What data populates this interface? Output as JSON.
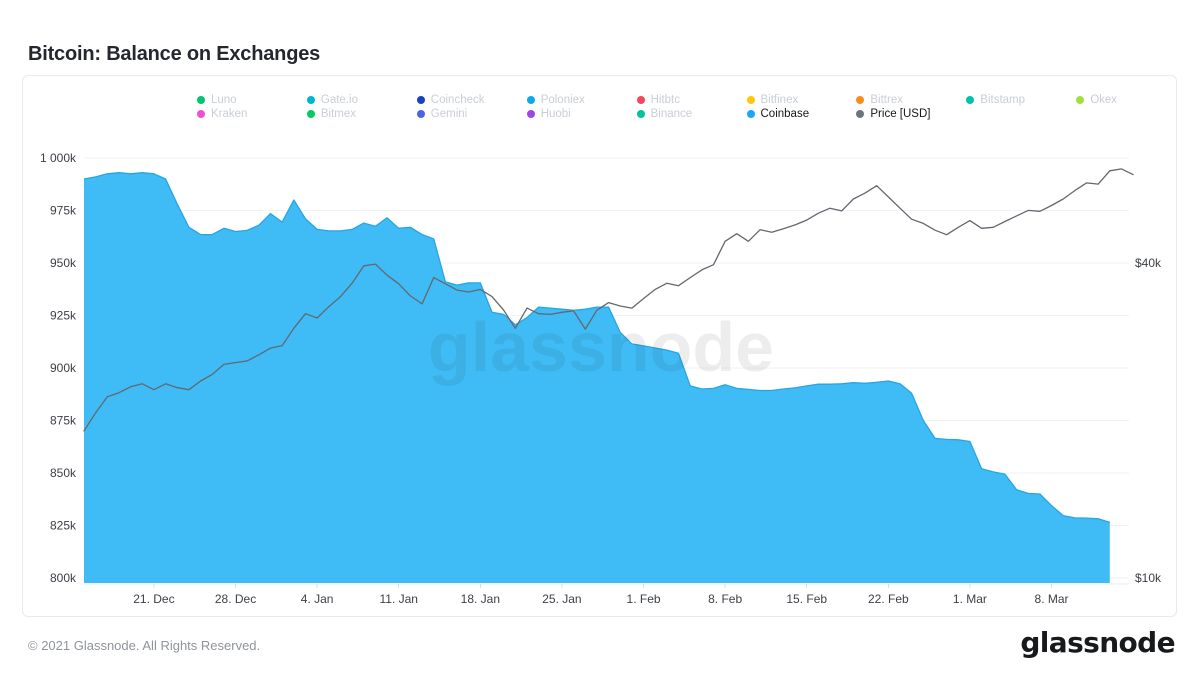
{
  "page": {
    "title": "Bitcoin: Balance on Exchanges",
    "watermark": "glassnode",
    "footer_copyright": "© 2021 Glassnode. All Rights Reserved.",
    "footer_logo": "glassnode"
  },
  "legend": {
    "rows": [
      [
        {
          "label": "Luno",
          "color": "#00c66f",
          "active": false
        },
        {
          "label": "Gate.io",
          "color": "#00b4d8",
          "active": false
        },
        {
          "label": "Coincheck",
          "color": "#1641c3",
          "active": false
        },
        {
          "label": "Poloniex",
          "color": "#0fa7f0",
          "active": false
        },
        {
          "label": "Hitbtc",
          "color": "#f5485d",
          "active": false
        },
        {
          "label": "Bitfinex",
          "color": "#ffc60b",
          "active": false
        },
        {
          "label": "Bittrex",
          "color": "#fc8b1f",
          "active": false
        },
        {
          "label": "Bitstamp",
          "color": "#00c2a4",
          "active": false
        },
        {
          "label": "Okex",
          "color": "#a0e03c",
          "active": false
        }
      ],
      [
        {
          "label": "Kraken",
          "color": "#ef4fd8",
          "active": false
        },
        {
          "label": "Bitmex",
          "color": "#00cb61",
          "active": false
        },
        {
          "label": "Gemini",
          "color": "#4f61e5",
          "active": false
        },
        {
          "label": "Huobi",
          "color": "#9a49e6",
          "active": false
        },
        {
          "label": "Binance",
          "color": "#00c39c",
          "active": false
        },
        {
          "label": "Coinbase",
          "color": "#1ba7f5",
          "active": true
        },
        {
          "label": "Price [USD]",
          "color": "#70757c",
          "active": true
        }
      ]
    ]
  },
  "chart_data": {
    "type": "area",
    "title": "Bitcoin: Balance on Exchanges",
    "grid": true,
    "legend_position": "top",
    "left_axis": {
      "scale": "linear",
      "unit": "thousand BTC",
      "range": [
        800,
        1005
      ],
      "tick_values": [
        1000,
        975,
        950,
        925,
        900,
        875,
        850,
        825,
        800
      ],
      "tick_labels": [
        "1 000k",
        "975k",
        "950k",
        "925k",
        "900k",
        "875k",
        "850k",
        "825k",
        "800k"
      ]
    },
    "right_axis": {
      "scale": "log",
      "unit": "USD thousands",
      "tick_values": [
        40,
        10
      ],
      "tick_labels": [
        "$40k",
        "$10k"
      ]
    },
    "x_axis": {
      "unit": "day index (day 0 = first plotted day)",
      "tick_days": [
        6,
        13,
        20,
        27,
        34,
        41,
        48,
        55,
        62,
        69,
        76,
        83
      ],
      "tick_labels": [
        "21. Dec",
        "28. Dec",
        "4. Jan",
        "11. Jan",
        "18. Jan",
        "25. Jan",
        "1. Feb",
        "8. Feb",
        "15. Feb",
        "22. Feb",
        "1. Mar",
        "8. Mar"
      ]
    },
    "series": [
      {
        "name": "Coinbase",
        "type": "area",
        "axis": "left",
        "color": "#3fbcf5",
        "edge_color": "#27a5e3",
        "start_day": 0,
        "values": [
          990,
          991,
          992.5,
          993,
          992.5,
          993,
          992.5,
          990,
          978,
          967,
          963.5,
          963.5,
          966.5,
          965,
          965.5,
          968,
          973.5,
          969.5,
          980,
          971,
          966,
          965.3,
          965.3,
          966,
          969,
          967.5,
          971.5,
          966.5,
          967,
          963.5,
          961.5,
          941,
          939.5,
          940.5,
          940.5,
          926.5,
          925.5,
          920.5,
          924,
          929,
          928.5,
          928,
          927.5,
          928,
          929,
          929,
          917,
          911.5,
          910.5,
          909.5,
          908.5,
          907,
          891.5,
          890,
          890.3,
          892,
          890.3,
          889.8,
          889.3,
          889.3,
          890,
          890.5,
          891.5,
          892.3,
          892.3,
          892.5,
          893,
          892.7,
          893.2,
          893.8,
          892.5,
          888,
          875,
          866.5,
          866,
          865.8,
          865,
          852,
          850.5,
          849.5,
          842,
          840.3,
          840,
          834.5,
          829.7,
          828.6,
          828.5,
          828.2,
          826.5
        ]
      },
      {
        "name": "Price [USD]",
        "type": "line",
        "axis": "right",
        "color": "#63686f",
        "start_day": 0,
        "values": [
          19.1,
          20.7,
          22.2,
          22.6,
          23.2,
          23.5,
          22.9,
          23.5,
          23.1,
          22.9,
          23.8,
          24.5,
          25.6,
          25.8,
          26.0,
          26.7,
          27.5,
          27.8,
          30.0,
          32.0,
          31.4,
          33.0,
          34.5,
          36.6,
          39.5,
          39.8,
          37.9,
          36.5,
          34.6,
          33.4,
          37.5,
          36.5,
          35.5,
          35.2,
          35.6,
          34.5,
          32.5,
          30.0,
          32.8,
          32.0,
          31.9,
          32.2,
          32.4,
          29.9,
          32.5,
          33.6,
          33.1,
          32.8,
          34.2,
          35.6,
          36.6,
          36.2,
          37.5,
          38.8,
          39.7,
          44.0,
          45.5,
          44.0,
          46.3,
          45.8,
          46.5,
          47.3,
          48.3,
          49.8,
          50.9,
          50.3,
          53.0,
          54.4,
          56.2,
          53.5,
          50.9,
          48.5,
          47.6,
          46.2,
          45.3,
          46.8,
          48.2,
          46.6,
          46.8,
          48.0,
          49.2,
          50.4,
          50.2,
          51.5,
          53.0,
          55.0,
          56.9,
          56.6,
          60.0,
          60.5,
          59.0
        ]
      }
    ]
  }
}
